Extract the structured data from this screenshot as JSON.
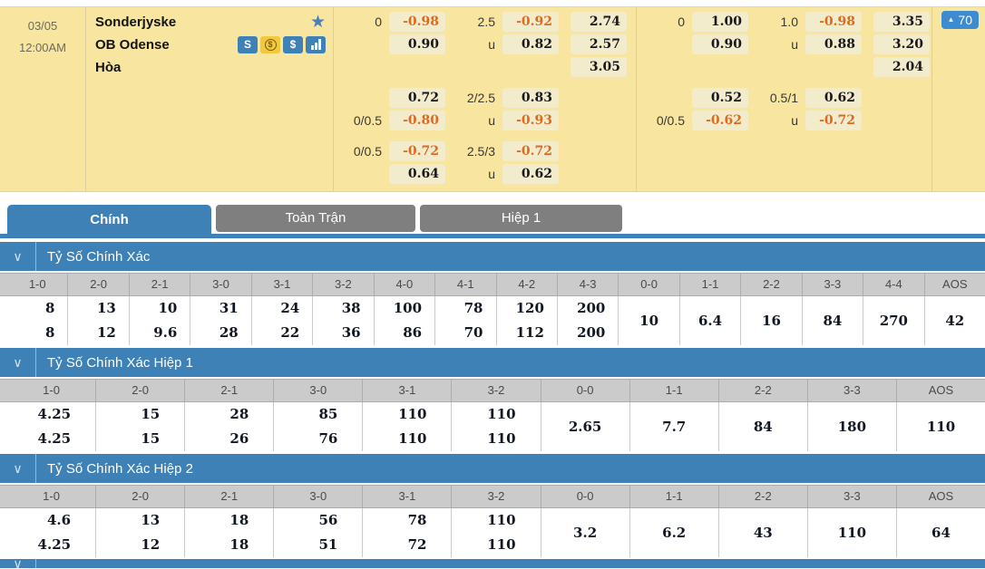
{
  "glyphs": {
    "star": "★",
    "chevron": "∨",
    "up_triangle": "▲",
    "dollar": "$",
    "s_letter": "S"
  },
  "colors": {
    "panel_bg": "#F8E5A0",
    "chip_bg": "#F2ECCC",
    "negative_odds": "#DC6B1E",
    "bar_blue": "#3E81B6",
    "button_blue": "#3D8CD2",
    "tab_gray": "#7F7F7F",
    "header_row_gray": "#CBCBCB"
  },
  "match": {
    "date": "03/05",
    "time": "12:00AM",
    "teams": [
      "Sonderjyske",
      "OB Odense",
      "Hòa"
    ],
    "more_count": "70",
    "odds_left": [
      [
        {
          "hl": "0",
          "hv": "-0.98",
          "ol": "2.5",
          "ov": "-0.92",
          "xv": "2.74"
        },
        {
          "hl": "",
          "hv": "0.90",
          "ol": "u",
          "ov": "0.82",
          "xv": "2.57"
        },
        {
          "hl": "",
          "hv": "",
          "ol": "",
          "ov": "",
          "xv": "3.05"
        }
      ],
      [
        {
          "hl": "",
          "hv": "0.72",
          "ol": "2/2.5",
          "ov": "0.83",
          "xv": ""
        },
        {
          "hl": "0/0.5",
          "hv": "-0.80",
          "ol": "u",
          "ov": "-0.93",
          "xv": ""
        }
      ],
      [
        {
          "hl": "0/0.5",
          "hv": "-0.72",
          "ol": "2.5/3",
          "ov": "-0.72",
          "xv": ""
        },
        {
          "hl": "",
          "hv": "0.64",
          "ol": "u",
          "ov": "0.62",
          "xv": ""
        }
      ]
    ],
    "odds_right": [
      [
        {
          "hl": "0",
          "hv": "1.00",
          "ol": "1.0",
          "ov": "-0.98",
          "xv": "3.35"
        },
        {
          "hl": "",
          "hv": "0.90",
          "ol": "u",
          "ov": "0.88",
          "xv": "3.20"
        },
        {
          "hl": "",
          "hv": "",
          "ol": "",
          "ov": "",
          "xv": "2.04"
        }
      ],
      [
        {
          "hl": "",
          "hv": "0.52",
          "ol": "0.5/1",
          "ov": "0.62",
          "xv": ""
        },
        {
          "hl": "0/0.5",
          "hv": "-0.62",
          "ol": "u",
          "ov": "-0.72",
          "xv": ""
        }
      ]
    ]
  },
  "tabs": [
    {
      "label": "Chính",
      "active": true
    },
    {
      "label": "Toàn Trận",
      "active": false
    },
    {
      "label": "Hiệp 1",
      "active": false
    }
  ],
  "sections": [
    {
      "title": "Tỷ Số Chính Xác",
      "partial": false,
      "columns": [
        {
          "h": "1-0",
          "v": [
            "8",
            "8"
          ]
        },
        {
          "h": "2-0",
          "v": [
            "13",
            "12"
          ]
        },
        {
          "h": "2-1",
          "v": [
            "10",
            "9.6"
          ]
        },
        {
          "h": "3-0",
          "v": [
            "31",
            "28"
          ]
        },
        {
          "h": "3-1",
          "v": [
            "24",
            "22"
          ]
        },
        {
          "h": "3-2",
          "v": [
            "38",
            "36"
          ]
        },
        {
          "h": "4-0",
          "v": [
            "100",
            "86"
          ]
        },
        {
          "h": "4-1",
          "v": [
            "78",
            "70"
          ]
        },
        {
          "h": "4-2",
          "v": [
            "120",
            "112"
          ]
        },
        {
          "h": "4-3",
          "v": [
            "200",
            "200"
          ]
        },
        {
          "h": "0-0",
          "v": [
            "10"
          ]
        },
        {
          "h": "1-1",
          "v": [
            "6.4"
          ]
        },
        {
          "h": "2-2",
          "v": [
            "16"
          ]
        },
        {
          "h": "3-3",
          "v": [
            "84"
          ]
        },
        {
          "h": "4-4",
          "v": [
            "270"
          ]
        },
        {
          "h": "AOS",
          "v": [
            "42"
          ]
        }
      ]
    },
    {
      "title": "Tỷ Số Chính Xác Hiệp 1",
      "partial": false,
      "columns": [
        {
          "h": "1-0",
          "v": [
            "4.25",
            "4.25"
          ]
        },
        {
          "h": "2-0",
          "v": [
            "15",
            "15"
          ]
        },
        {
          "h": "2-1",
          "v": [
            "28",
            "26"
          ]
        },
        {
          "h": "3-0",
          "v": [
            "85",
            "76"
          ]
        },
        {
          "h": "3-1",
          "v": [
            "110",
            "110"
          ]
        },
        {
          "h": "3-2",
          "v": [
            "110",
            "110"
          ]
        },
        {
          "h": "0-0",
          "v": [
            "2.65"
          ]
        },
        {
          "h": "1-1",
          "v": [
            "7.7"
          ]
        },
        {
          "h": "2-2",
          "v": [
            "84"
          ]
        },
        {
          "h": "3-3",
          "v": [
            "180"
          ]
        },
        {
          "h": "AOS",
          "v": [
            "110"
          ]
        }
      ]
    },
    {
      "title": "Tỷ Số Chính Xác Hiệp 2",
      "partial": false,
      "columns": [
        {
          "h": "1-0",
          "v": [
            "4.6",
            "4.25"
          ]
        },
        {
          "h": "2-0",
          "v": [
            "13",
            "12"
          ]
        },
        {
          "h": "2-1",
          "v": [
            "18",
            "18"
          ]
        },
        {
          "h": "3-0",
          "v": [
            "56",
            "51"
          ]
        },
        {
          "h": "3-1",
          "v": [
            "78",
            "72"
          ]
        },
        {
          "h": "3-2",
          "v": [
            "110",
            "110"
          ]
        },
        {
          "h": "0-0",
          "v": [
            "3.2"
          ]
        },
        {
          "h": "1-1",
          "v": [
            "6.2"
          ]
        },
        {
          "h": "2-2",
          "v": [
            "43"
          ]
        },
        {
          "h": "3-3",
          "v": [
            "110"
          ]
        },
        {
          "h": "AOS",
          "v": [
            "64"
          ]
        }
      ]
    },
    {
      "title": "",
      "partial": true,
      "columns": []
    }
  ]
}
